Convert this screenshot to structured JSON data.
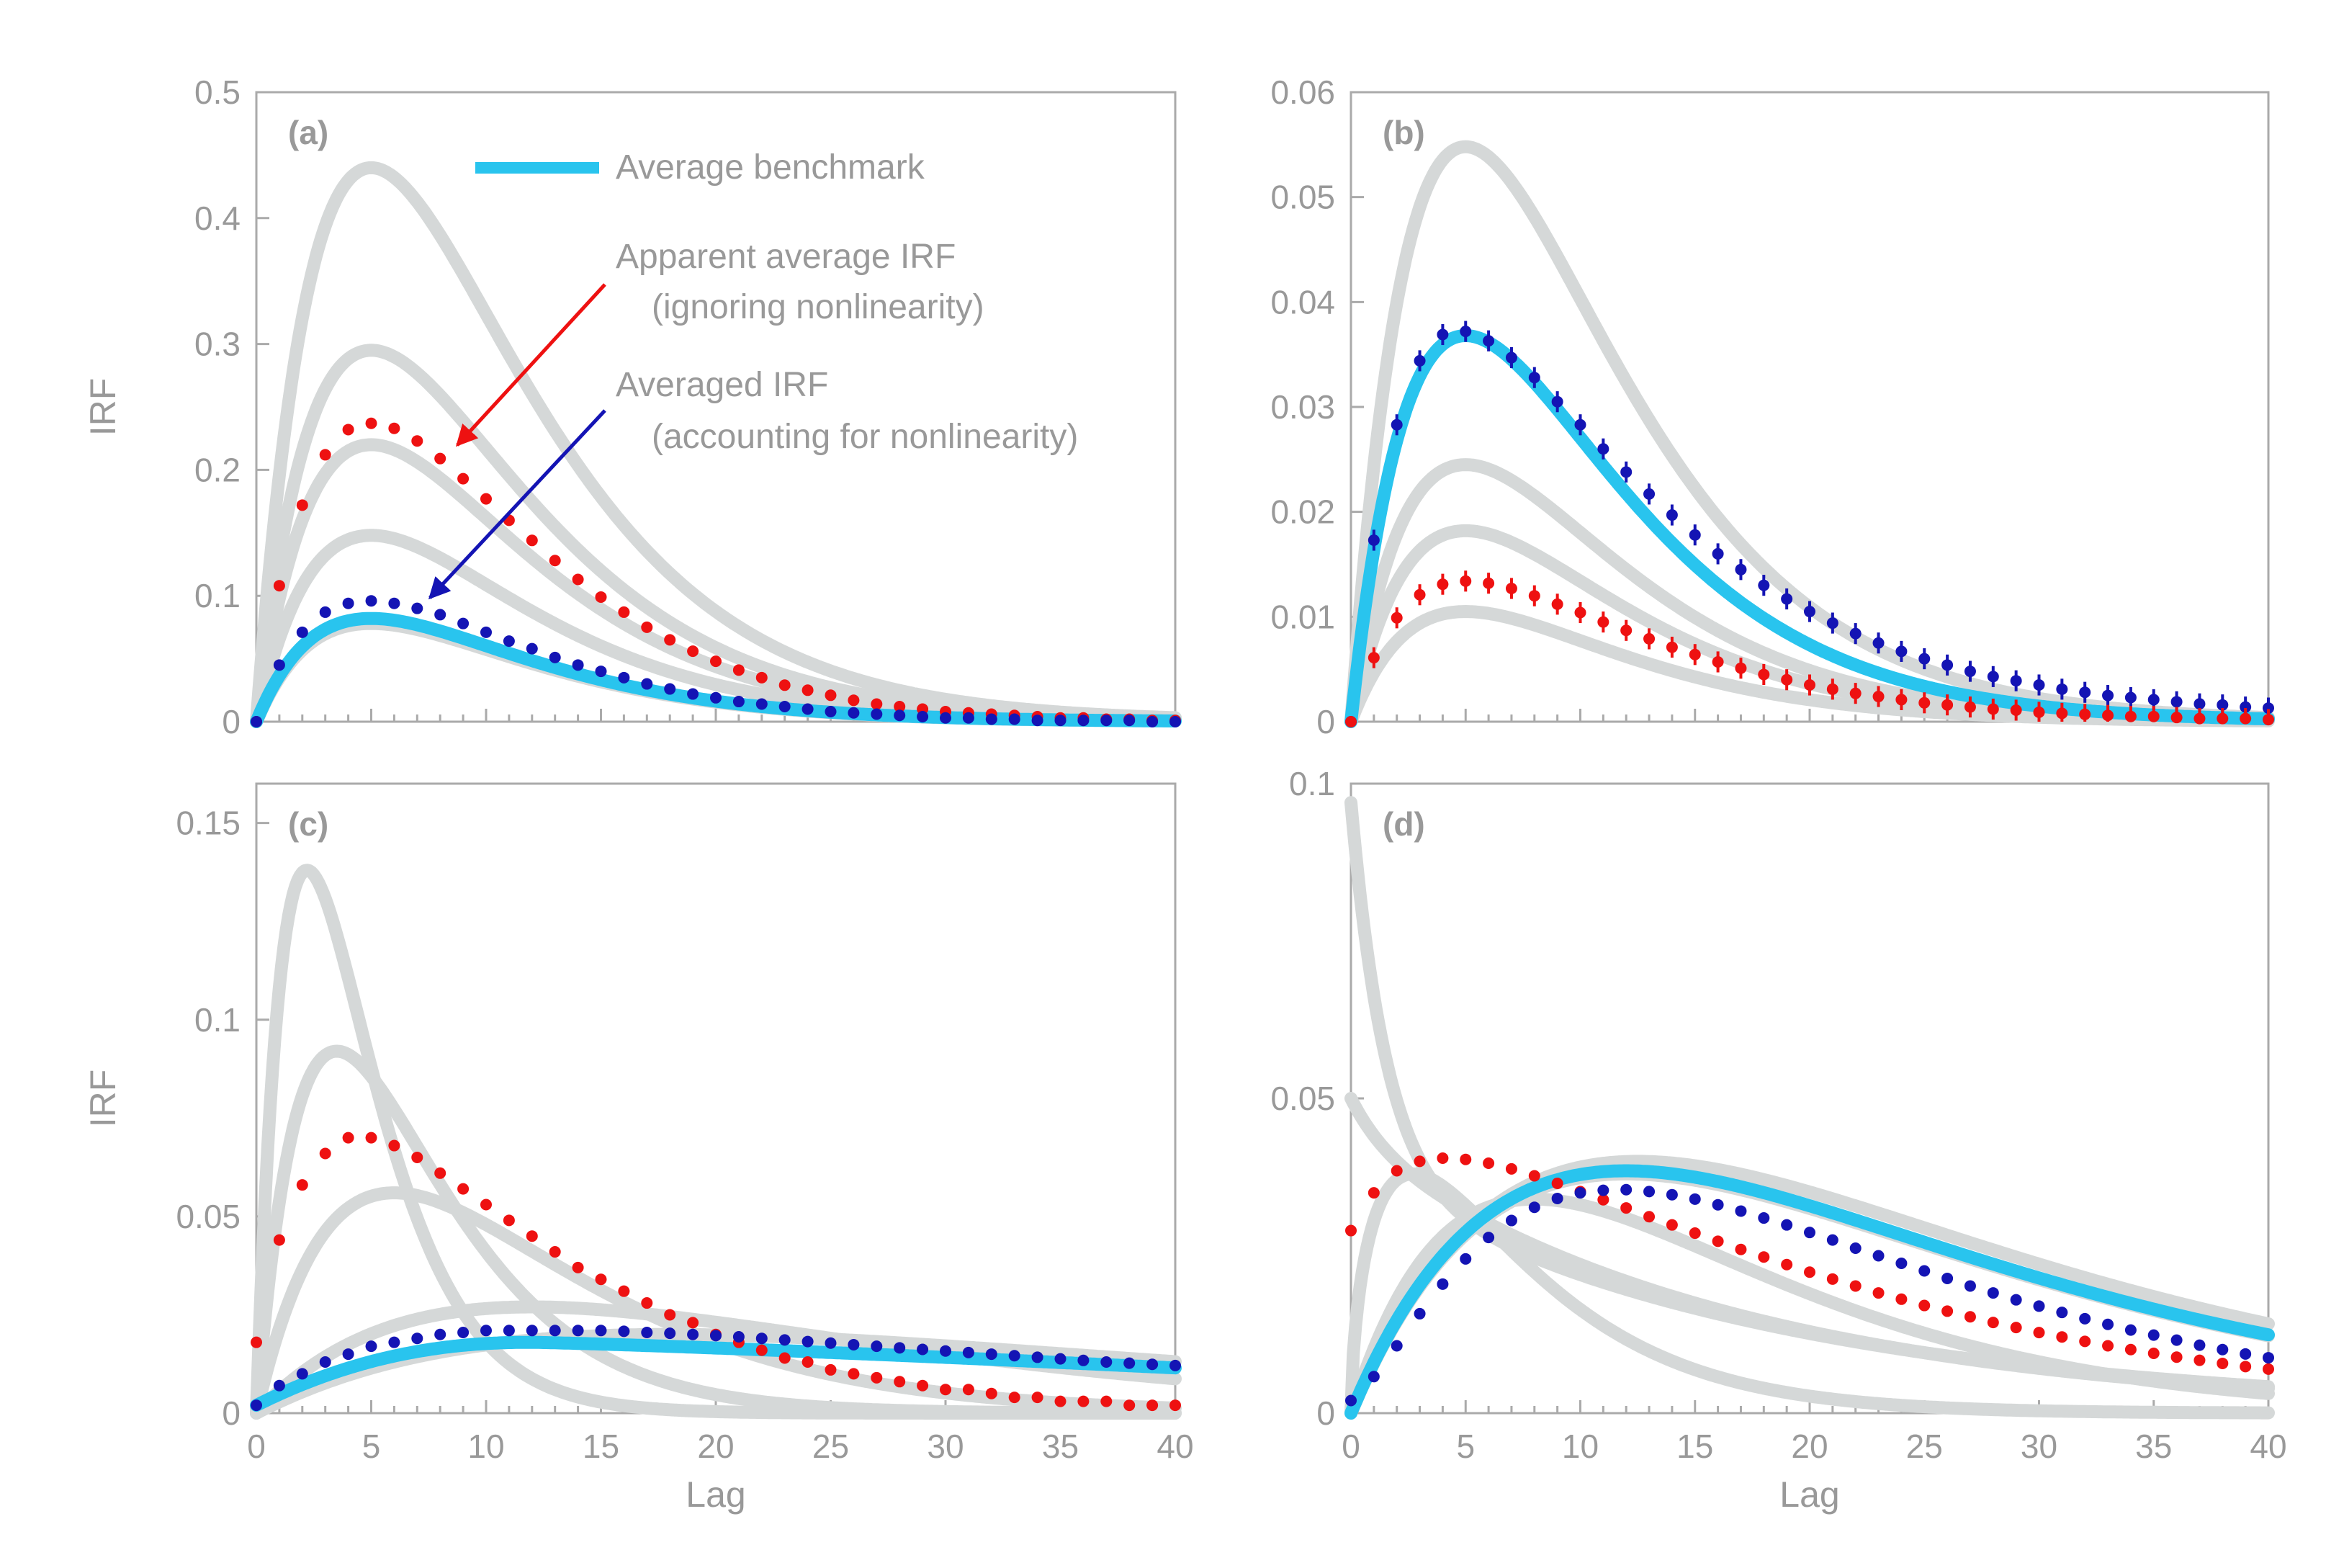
{
  "colors": {
    "axis": "#aaaaaa",
    "text": "#999999",
    "gray_curve": "#d5d8d8",
    "benchmark": "#29c4ee",
    "apparent": "#ee1111",
    "averaged": "#1414b4",
    "red_arrow": "#ee1111",
    "blue_arrow": "#1414b4"
  },
  "annotations": {
    "legend_label": "Average benchmark",
    "apparent_line1": "Apparent average IRF",
    "apparent_line2": "(ignoring nonlinearity)",
    "averaged_line1": "Averaged IRF",
    "averaged_line2": "(accounting for nonlinearity)"
  },
  "chart_data": [
    {
      "panel": "(a)",
      "type": "line",
      "xlabel": "",
      "ylabel": "IRF",
      "xlim": [
        0,
        40
      ],
      "ylim": [
        0,
        0.5
      ],
      "yticks": [
        0,
        0.1,
        0.2,
        0.3,
        0.4,
        0.5
      ],
      "yticklabels": [
        "0",
        "0.1",
        "0.2",
        "0.3",
        "0.4",
        "0.5"
      ],
      "xticks": [
        0,
        5,
        10,
        15,
        20,
        25,
        30,
        35,
        40
      ],
      "xticklabels": [],
      "gray_curves": [
        {
          "shape": "gamma",
          "k": 2,
          "theta": 5,
          "peak": 0.44
        },
        {
          "shape": "gamma",
          "k": 2,
          "theta": 5,
          "peak": 0.295
        },
        {
          "shape": "gamma",
          "k": 2,
          "theta": 5,
          "peak": 0.22
        },
        {
          "shape": "gamma",
          "k": 2,
          "theta": 5,
          "peak": 0.148
        },
        {
          "shape": "gamma",
          "k": 2,
          "theta": 5,
          "peak": 0.078
        }
      ],
      "benchmark": {
        "shape": "gamma",
        "k": 2,
        "theta": 5,
        "peak": 0.082
      },
      "series": [
        {
          "name": "Apparent average IRF",
          "color_key": "apparent",
          "x_step": 1,
          "error_bars": false,
          "values": [
            0.0,
            0.108,
            0.172,
            0.212,
            0.232,
            0.237,
            0.233,
            0.223,
            0.209,
            0.193,
            0.177,
            0.16,
            0.144,
            0.128,
            0.113,
            0.099,
            0.087,
            0.075,
            0.065,
            0.056,
            0.048,
            0.041,
            0.035,
            0.029,
            0.025,
            0.021,
            0.017,
            0.014,
            0.012,
            0.01,
            0.008,
            0.007,
            0.006,
            0.005,
            0.004,
            0.003,
            0.003,
            0.002,
            0.002,
            0.001,
            0.001
          ]
        },
        {
          "name": "Averaged IRF",
          "color_key": "averaged",
          "x_step": 1,
          "error_bars": false,
          "values": [
            0.0,
            0.045,
            0.071,
            0.087,
            0.094,
            0.096,
            0.094,
            0.09,
            0.085,
            0.078,
            0.071,
            0.064,
            0.058,
            0.051,
            0.045,
            0.04,
            0.035,
            0.03,
            0.026,
            0.022,
            0.019,
            0.016,
            0.014,
            0.012,
            0.01,
            0.008,
            0.007,
            0.006,
            0.005,
            0.004,
            0.003,
            0.003,
            0.002,
            0.002,
            0.001,
            0.001,
            0.001,
            0.001,
            0.001,
            0.0,
            0.0
          ]
        }
      ]
    },
    {
      "panel": "(b)",
      "type": "line",
      "xlabel": "",
      "ylabel": "",
      "xlim": [
        0,
        40
      ],
      "ylim": [
        0,
        0.06
      ],
      "yticks": [
        0,
        0.01,
        0.02,
        0.03,
        0.04,
        0.05,
        0.06
      ],
      "yticklabels": [
        "0",
        "0.01",
        "0.02",
        "0.03",
        "0.04",
        "0.05",
        "0.06"
      ],
      "xticks": [
        0,
        5,
        10,
        15,
        20,
        25,
        30,
        35,
        40
      ],
      "xticklabels": [],
      "gray_curves": [
        {
          "shape": "gamma",
          "k": 2,
          "theta": 5,
          "peak": 0.0548
        },
        {
          "shape": "gamma",
          "k": 2,
          "theta": 5,
          "peak": 0.0245
        },
        {
          "shape": "gamma",
          "k": 2,
          "theta": 5,
          "peak": 0.0182
        },
        {
          "shape": "gamma",
          "k": 2,
          "theta": 5,
          "peak": 0.0105
        }
      ],
      "benchmark": {
        "shape": "gamma",
        "k": 2,
        "theta": 5,
        "peak": 0.0368
      },
      "series": [
        {
          "name": "Averaged IRF",
          "color_key": "averaged",
          "x_step": 1,
          "error_bars": true,
          "error": 0.001,
          "values": [
            0.0,
            0.0173,
            0.0283,
            0.0344,
            0.0369,
            0.0372,
            0.0363,
            0.0347,
            0.0328,
            0.0305,
            0.0283,
            0.026,
            0.0238,
            0.0217,
            0.0197,
            0.0178,
            0.016,
            0.0145,
            0.013,
            0.0117,
            0.0105,
            0.0094,
            0.0084,
            0.0075,
            0.0067,
            0.006,
            0.0054,
            0.0048,
            0.0043,
            0.0039,
            0.0035,
            0.0031,
            0.0028,
            0.0025,
            0.0023,
            0.0021,
            0.0019,
            0.0017,
            0.0016,
            0.0014,
            0.0013
          ]
        },
        {
          "name": "Apparent average IRF",
          "color_key": "apparent",
          "x_step": 1,
          "error_bars": true,
          "error": 0.001,
          "values": [
            0.0,
            0.0061,
            0.0099,
            0.0121,
            0.0131,
            0.0134,
            0.0132,
            0.0127,
            0.012,
            0.0112,
            0.0104,
            0.0095,
            0.0087,
            0.0079,
            0.0071,
            0.0064,
            0.0057,
            0.0051,
            0.0045,
            0.004,
            0.0035,
            0.0031,
            0.0027,
            0.0024,
            0.0021,
            0.0018,
            0.0016,
            0.0014,
            0.0012,
            0.0011,
            0.0009,
            0.0008,
            0.0007,
            0.0006,
            0.0005,
            0.0005,
            0.0004,
            0.0003,
            0.0003,
            0.0003,
            0.0002
          ]
        }
      ]
    },
    {
      "panel": "(c)",
      "type": "line",
      "xlabel": "Lag",
      "ylabel": "IRF",
      "xlim": [
        0,
        40
      ],
      "ylim": [
        0,
        0.16
      ],
      "yticks": [
        0,
        0.05,
        0.1,
        0.15
      ],
      "yticklabels": [
        "0",
        "0.05",
        "0.1",
        "0.15"
      ],
      "xticks": [
        0,
        5,
        10,
        15,
        20,
        25,
        30,
        35,
        40
      ],
      "xticklabels": [
        "0",
        "5",
        "10",
        "15",
        "20",
        "25",
        "30",
        "35",
        "40"
      ],
      "gray_curves": [
        {
          "shape": "gamma",
          "k": 2,
          "theta": 2.2,
          "peak": 0.138
        },
        {
          "shape": "gamma",
          "k": 2,
          "theta": 3.5,
          "peak": 0.092
        },
        {
          "shape": "gamma",
          "k": 2,
          "theta": 6.0,
          "peak": 0.056
        },
        {
          "shape": "gamma",
          "k": 2,
          "theta": 12,
          "peak": 0.027
        },
        {
          "shape": "gamma",
          "k": 2,
          "theta": 18,
          "peak": 0.02
        }
      ],
      "benchmark": {
        "shape": "tail",
        "peak": 0.018,
        "x_peak": 12,
        "end_value": 0.0115
      },
      "series": [
        {
          "name": "Apparent average IRF",
          "color_key": "apparent",
          "x_step": 1,
          "error_bars": false,
          "values": [
            0.018,
            0.044,
            0.058,
            0.066,
            0.07,
            0.07,
            0.068,
            0.065,
            0.061,
            0.057,
            0.053,
            0.049,
            0.045,
            0.041,
            0.037,
            0.034,
            0.031,
            0.028,
            0.025,
            0.023,
            0.02,
            0.018,
            0.016,
            0.014,
            0.013,
            0.011,
            0.01,
            0.009,
            0.008,
            0.007,
            0.006,
            0.006,
            0.005,
            0.004,
            0.004,
            0.003,
            0.003,
            0.003,
            0.002,
            0.002,
            0.002
          ]
        },
        {
          "name": "Averaged IRF",
          "color_key": "averaged",
          "x_step": 1,
          "error_bars": false,
          "values": [
            0.002,
            0.007,
            0.01,
            0.013,
            0.015,
            0.017,
            0.018,
            0.019,
            0.02,
            0.0205,
            0.021,
            0.021,
            0.021,
            0.021,
            0.021,
            0.021,
            0.0208,
            0.0205,
            0.0203,
            0.02,
            0.0197,
            0.0194,
            0.019,
            0.0186,
            0.0182,
            0.0178,
            0.0174,
            0.017,
            0.0166,
            0.0162,
            0.0158,
            0.0154,
            0.015,
            0.0146,
            0.0142,
            0.0138,
            0.0134,
            0.013,
            0.0127,
            0.0124,
            0.0121
          ]
        }
      ]
    },
    {
      "panel": "(d)",
      "type": "line",
      "xlabel": "Lag",
      "ylabel": "",
      "xlim": [
        0,
        40
      ],
      "ylim": [
        0,
        0.1
      ],
      "yticks": [
        0,
        0.05,
        0.1
      ],
      "yticklabels": [
        "0",
        "0.05",
        "0.1"
      ],
      "xticks": [
        0,
        5,
        10,
        15,
        20,
        25,
        30,
        35,
        40
      ],
      "xticklabels": [
        "0",
        "5",
        "10",
        "15",
        "20",
        "25",
        "30",
        "35",
        "40"
      ],
      "gray_curves": [
        {
          "shape": "decay",
          "start": 0.097,
          "mid": 0.038,
          "rate": 0.055
        },
        {
          "shape": "decay",
          "start": 0.05,
          "mid": 0.043,
          "rate": 0.06
        },
        {
          "shape": "gamma",
          "k": 1.6,
          "theta": 4.5,
          "peak": 0.038
        },
        {
          "shape": "gamma",
          "k": 2,
          "theta": 12,
          "peak": 0.038
        },
        {
          "shape": "gamma",
          "k": 2,
          "theta": 12.5,
          "peak": 0.04
        },
        {
          "shape": "gamma",
          "k": 2,
          "theta": 8,
          "peak": 0.034
        }
      ],
      "benchmark": {
        "shape": "gamma",
        "k": 2,
        "theta": 12,
        "peak": 0.0385
      },
      "series": [
        {
          "name": "Apparent average IRF",
          "color_key": "apparent",
          "x_step": 1,
          "error_bars": false,
          "values": [
            0.029,
            0.035,
            0.0385,
            0.04,
            0.0405,
            0.0403,
            0.0397,
            0.0388,
            0.0377,
            0.0365,
            0.0352,
            0.0339,
            0.0326,
            0.0312,
            0.0299,
            0.0286,
            0.0273,
            0.026,
            0.0248,
            0.0236,
            0.0224,
            0.0213,
            0.0202,
            0.0191,
            0.0181,
            0.0171,
            0.0162,
            0.0153,
            0.0144,
            0.0136,
            0.0128,
            0.0121,
            0.0114,
            0.0107,
            0.0101,
            0.0095,
            0.0089,
            0.0084,
            0.0079,
            0.0074,
            0.007
          ]
        },
        {
          "name": "Averaged IRF",
          "color_key": "averaged",
          "x_step": 1,
          "error_bars": false,
          "values": [
            0.002,
            0.0058,
            0.0107,
            0.0158,
            0.0205,
            0.0245,
            0.0279,
            0.0306,
            0.0327,
            0.0341,
            0.035,
            0.0354,
            0.0355,
            0.0352,
            0.0347,
            0.034,
            0.0331,
            0.0321,
            0.031,
            0.0299,
            0.0287,
            0.0275,
            0.0262,
            0.025,
            0.0238,
            0.0226,
            0.0214,
            0.0202,
            0.0191,
            0.018,
            0.017,
            0.016,
            0.015,
            0.0141,
            0.0132,
            0.0124,
            0.0116,
            0.0108,
            0.0101,
            0.0094,
            0.0088
          ]
        }
      ]
    }
  ]
}
